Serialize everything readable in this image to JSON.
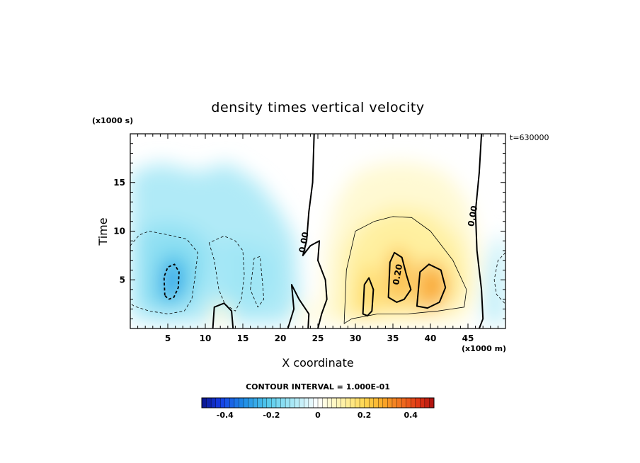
{
  "chart_data": {
    "type": "heatmap",
    "title": "density times vertical velocity",
    "xlabel": "X coordinate",
    "ylabel": "Time",
    "x_units": "(x1000 m)",
    "y_units": "(x1000 s)",
    "time_stamp": "t=630000",
    "xlim": [
      0,
      50
    ],
    "ylim": [
      0,
      20
    ],
    "x_ticks": [
      5,
      10,
      15,
      20,
      25,
      30,
      35,
      40,
      45
    ],
    "y_ticks": [
      5,
      10,
      15
    ],
    "contour_interval_text": "CONTOUR INTERVAL = 1.000E-01",
    "contour_labels": [
      {
        "text": "0.00",
        "x": 23.5,
        "y": 8.8
      },
      {
        "text": "0.20",
        "x": 36.0,
        "y": 5.5
      },
      {
        "text": "0.00",
        "x": 46.0,
        "y": 11.5
      }
    ],
    "colorbar": {
      "min": -0.5,
      "max": 0.5,
      "step": 0.02,
      "tick_values": [
        -0.4,
        -0.2,
        0,
        0.2,
        0.4
      ],
      "tick_labels": [
        "-0.4",
        "-0.2",
        "0",
        "0.2",
        "0.4"
      ]
    },
    "features": [
      {
        "x": 5.5,
        "y": 4.8,
        "value": -0.25
      },
      {
        "x": 13,
        "y": 6,
        "value": -0.12
      },
      {
        "x": 17,
        "y": 6,
        "value": -0.1
      },
      {
        "x": 31.5,
        "y": 3,
        "value": 0.2
      },
      {
        "x": 35.5,
        "y": 5.5,
        "value": 0.28
      },
      {
        "x": 39.5,
        "y": 4.5,
        "value": 0.3
      },
      {
        "x": 49.5,
        "y": 5,
        "value": -0.08
      }
    ]
  }
}
